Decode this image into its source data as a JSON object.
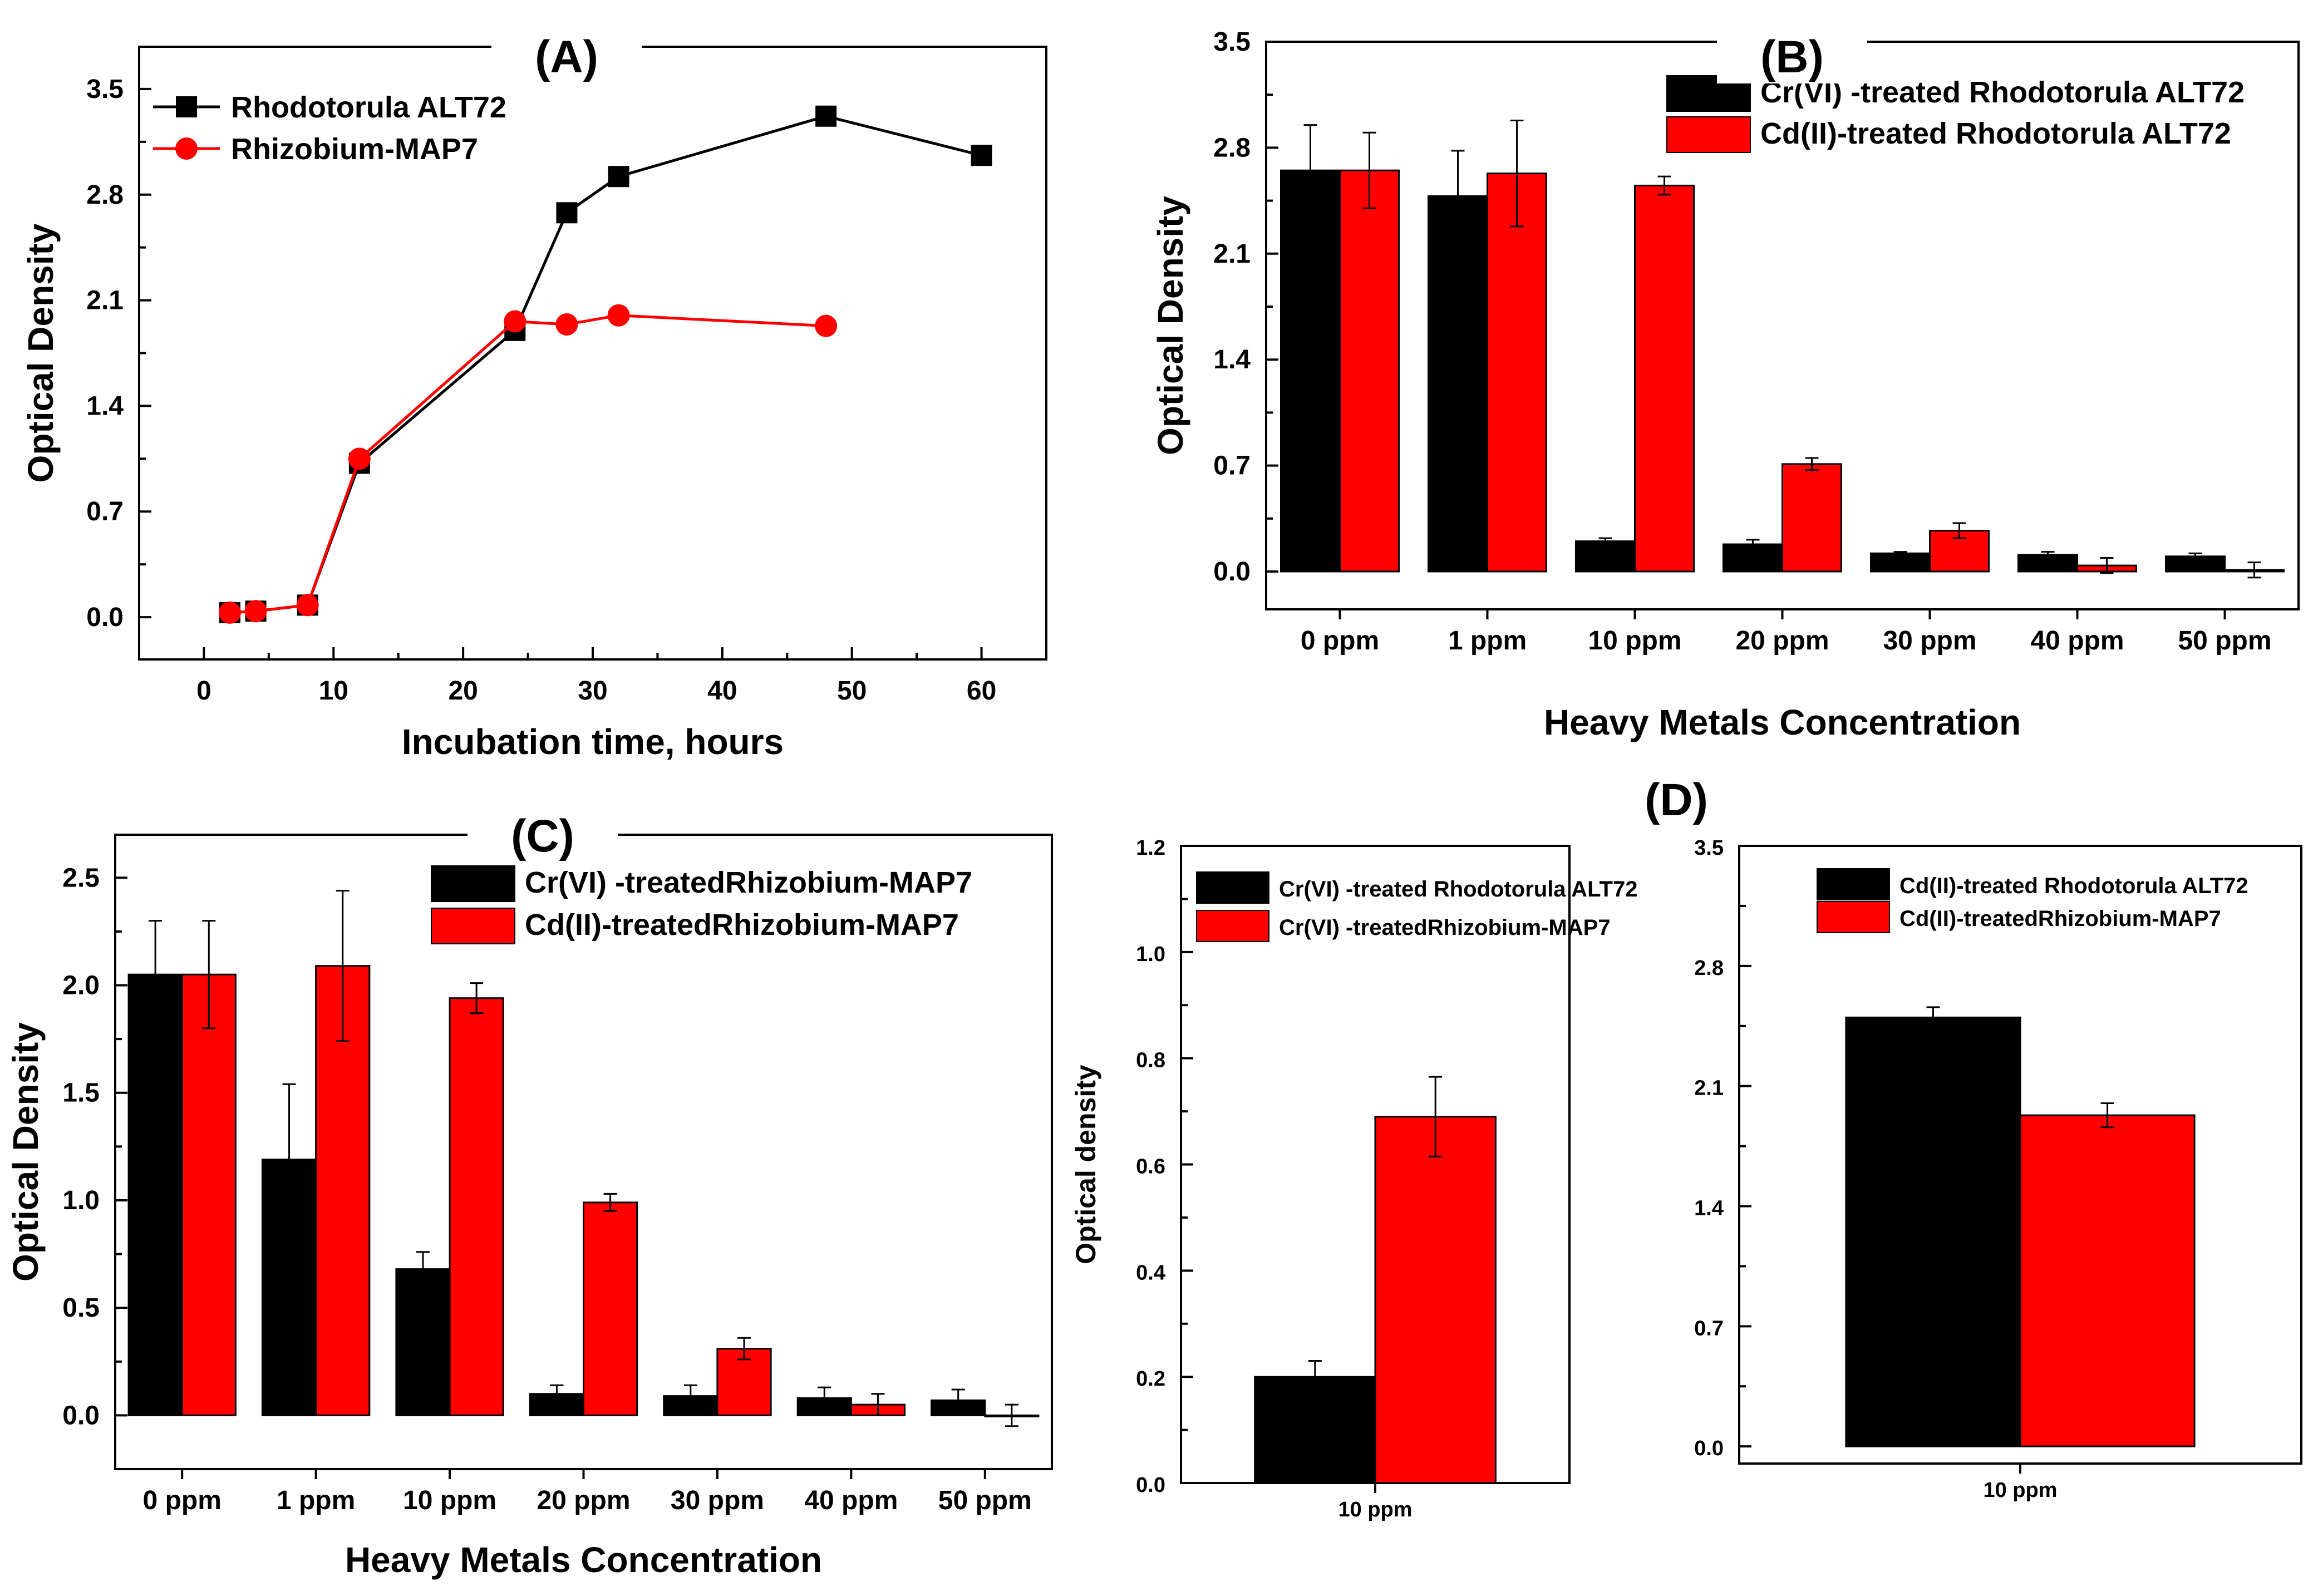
{
  "colors": {
    "black": "#000000",
    "red": "#ff0000"
  },
  "chart_data": [
    {
      "panel": "(A)",
      "type": "line",
      "title": "(A)",
      "xlabel": "Incubation time, hours",
      "ylabel": "Optical Density",
      "xlim": [
        -5,
        65
      ],
      "ylim": [
        -0.28,
        3.78
      ],
      "xticks": [
        0,
        10,
        20,
        30,
        40,
        50,
        60
      ],
      "xtick_labels": [
        "0",
        "10",
        "20",
        "30",
        "40",
        "50",
        "60"
      ],
      "yticks": [
        0,
        0.7,
        1.4,
        2.1,
        2.8,
        3.5
      ],
      "ytick_labels": [
        "0.0",
        "0.7",
        "1.4",
        "2.1",
        "2.8",
        "3.5"
      ],
      "legend_position": "top-left",
      "series": [
        {
          "name": "Rhodotorula ALT72",
          "color": "#000000",
          "marker": "square",
          "x": [
            2,
            4,
            8,
            12,
            24,
            28,
            32,
            48,
            60
          ],
          "y": [
            0.03,
            0.04,
            0.08,
            1.02,
            1.9,
            2.68,
            2.92,
            3.32,
            3.06
          ]
        },
        {
          "name": "Rhizobium-MAP7",
          "color": "#ff0000",
          "marker": "circle",
          "x": [
            2,
            4,
            8,
            12,
            24,
            28,
            32,
            48
          ],
          "y": [
            0.03,
            0.04,
            0.08,
            1.05,
            1.96,
            1.94,
            2.0,
            1.93
          ]
        }
      ]
    },
    {
      "panel": "(B)",
      "type": "bar",
      "title": "(B)",
      "xlabel": "Heavy Metals Concentration",
      "ylabel": "Optical Density",
      "ylim": [
        -0.25,
        3.5
      ],
      "yticks": [
        0,
        0.7,
        1.4,
        2.1,
        2.8,
        3.5
      ],
      "ytick_labels": [
        "0.0",
        "0.7",
        "1.4",
        "2.1",
        "2.8",
        "3.5"
      ],
      "categories": [
        "0 ppm",
        "1 ppm",
        "10 ppm",
        "20 ppm",
        "30 ppm",
        "40 ppm",
        "50 ppm"
      ],
      "legend_position": "top-right",
      "series": [
        {
          "name": "Cr(VI) -treated Rhodotorula ALT72",
          "color": "#000000",
          "values": [
            2.65,
            2.48,
            0.2,
            0.18,
            0.12,
            0.11,
            0.1
          ],
          "errors": [
            0.3,
            0.3,
            0.02,
            0.03,
            0.01,
            0.02,
            0.02
          ]
        },
        {
          "name": "Cd(II)-treated Rhodotorula ALT72",
          "color": "#ff0000",
          "values": [
            2.65,
            2.63,
            2.55,
            0.71,
            0.27,
            0.04,
            0.01
          ],
          "errors": [
            0.25,
            0.35,
            0.06,
            0.04,
            0.05,
            0.05,
            0.05
          ]
        }
      ]
    },
    {
      "panel": "(C)",
      "type": "bar",
      "title": "(C)",
      "xlabel": "Heavy Metals Concentration",
      "ylabel": "Optical Density",
      "ylim": [
        -0.25,
        2.7
      ],
      "yticks": [
        0,
        0.5,
        1.0,
        1.5,
        2.0,
        2.5
      ],
      "ytick_labels": [
        "0.0",
        "0.5",
        "1.0",
        "1.5",
        "2.0",
        "2.5"
      ],
      "categories": [
        "0 ppm",
        "1 ppm",
        "10 ppm",
        "20 ppm",
        "30 ppm",
        "40 ppm",
        "50 ppm"
      ],
      "legend_position": "top-right",
      "series": [
        {
          "name": "Cr(VI) -treatedRhizobium-MAP7",
          "color": "#000000",
          "values": [
            2.05,
            1.19,
            0.68,
            0.1,
            0.09,
            0.08,
            0.07
          ],
          "errors": [
            0.25,
            0.35,
            0.08,
            0.04,
            0.05,
            0.05,
            0.05
          ]
        },
        {
          "name": "Cd(II)-treatedRhizobium-MAP7",
          "color": "#ff0000",
          "values": [
            2.05,
            2.09,
            1.94,
            0.99,
            0.31,
            0.05,
            0.0
          ],
          "errors": [
            0.25,
            0.35,
            0.07,
            0.04,
            0.05,
            0.05,
            0.05
          ]
        }
      ]
    },
    {
      "panel": "(D)",
      "type": "bar",
      "title": "(D)",
      "xlabel": "",
      "ylabel": "Optical density",
      "ylim": [
        0,
        1.2
      ],
      "yticks": [
        0,
        0.2,
        0.4,
        0.6,
        0.8,
        1.0,
        1.2
      ],
      "ytick_labels": [
        "0.0",
        "0.2",
        "0.4",
        "0.6",
        "0.8",
        "1.0",
        "1.2"
      ],
      "categories": [
        "10 ppm"
      ],
      "legend_position": "top-left",
      "series": [
        {
          "name": "Cr(VI) -treated Rhodotorula ALT72",
          "color": "#000000",
          "values": [
            0.2
          ],
          "errors": [
            0.03
          ]
        },
        {
          "name": "Cr(VI) -treatedRhizobium-MAP7",
          "color": "#ff0000",
          "values": [
            0.69
          ],
          "errors": [
            0.075
          ]
        }
      ]
    },
    {
      "panel": "(D)",
      "type": "bar",
      "title": "",
      "xlabel": "",
      "ylabel": "",
      "ylim": [
        -0.1,
        3.5
      ],
      "yticks": [
        0,
        0.7,
        1.4,
        2.1,
        2.8,
        3.5
      ],
      "ytick_labels": [
        "0.0",
        "0.7",
        "1.4",
        "2.1",
        "2.8",
        "3.5"
      ],
      "categories": [
        "10 ppm"
      ],
      "legend_position": "top-left",
      "series": [
        {
          "name": "Cd(II)-treated Rhodotorula ALT72",
          "color": "#000000",
          "values": [
            2.5
          ],
          "errors": [
            0.06
          ]
        },
        {
          "name": "Cd(II)-treatedRhizobium-MAP7",
          "color": "#ff0000",
          "values": [
            1.93
          ],
          "errors": [
            0.07
          ]
        }
      ]
    }
  ]
}
